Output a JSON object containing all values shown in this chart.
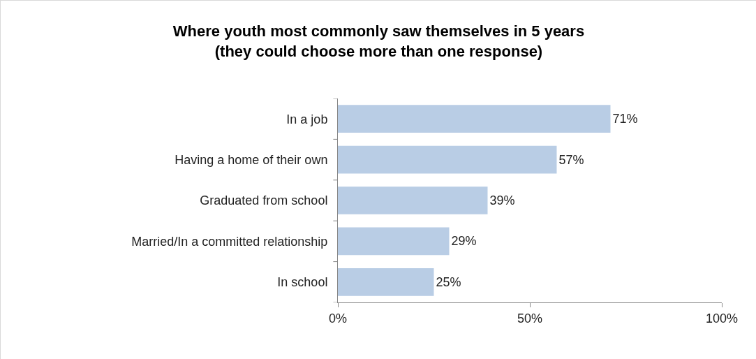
{
  "chart_data": {
    "type": "bar",
    "orientation": "horizontal",
    "title": "Where youth most commonly saw themselves in 5 years\n(they could choose more than one response)",
    "categories": [
      "In a job",
      "Having a home of their own",
      "Graduated from school",
      "Married/In a committed relationship",
      "In school"
    ],
    "values": [
      71,
      57,
      39,
      29,
      25
    ],
    "value_labels": [
      "71%",
      "57%",
      "39%",
      "29%",
      "25%"
    ],
    "color": "#b9cde5",
    "xlim": [
      0,
      100
    ],
    "xticks": [
      {
        "value": 0,
        "label": "0%"
      },
      {
        "value": 50,
        "label": "50%"
      },
      {
        "value": 100,
        "label": "100%"
      }
    ],
    "grid": false
  }
}
